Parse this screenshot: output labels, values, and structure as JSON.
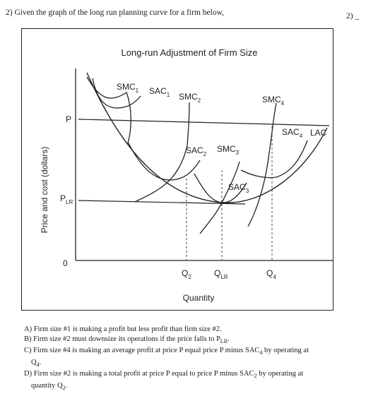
{
  "question": {
    "prompt": "2) Given the graph of the long run planning curve for a firm below,",
    "number_fragment": "2) _"
  },
  "figure": {
    "title": "Long-run Adjustment of Firm Size",
    "ylabel": "Price and cost (dollars)",
    "xlabel": "Quantity",
    "y_ticks": {
      "p": "P",
      "plr_main": "P",
      "plr_sub": "LR",
      "zero": "0"
    },
    "x_ticks": [
      {
        "main": "Q",
        "sub": "2"
      },
      {
        "main": "Q",
        "sub": "LR"
      },
      {
        "main": "Q",
        "sub": "4"
      }
    ],
    "curve_labels": {
      "smc1": {
        "main": "SMC",
        "sub": "1"
      },
      "sac1": {
        "main": "SAC",
        "sub": "1"
      },
      "smc2_top": {
        "main": "SMC",
        "sub": "2"
      },
      "smc4": {
        "main": "SMC",
        "sub": "4"
      },
      "sac4": {
        "main": "SAC",
        "sub": "4"
      },
      "lac": "LAC",
      "sac2": {
        "main": "SAC",
        "sub": "2"
      },
      "smc3": {
        "main": "SMC",
        "sub": "3"
      },
      "sac3": {
        "main": "SAC",
        "sub": "3"
      }
    }
  },
  "choices": [
    {
      "letter": "A)",
      "text": "Firm size #1 is making a profit but less profit than firm size #2."
    },
    {
      "letter": "B)",
      "text_before": "Firm size #2 must downsize its operations if the price falls to P",
      "sub": "LR",
      "text_after": "."
    },
    {
      "letter": "C)",
      "text_before": "Firm size #4 is making an average profit at price P equal price P minus SAC",
      "sub": "4",
      "text_after": " by operating at",
      "line2_main": "Q",
      "line2_sub": "4",
      "line2_after": "."
    },
    {
      "letter": "D)",
      "text_before": "Firm size #2 is making a total profit at price P equal to price P minus SAC",
      "sub": "2",
      "text_after": " by operating at",
      "line2_before": "quantity Q",
      "line2_sub": "2",
      "line2_after": "."
    }
  ]
}
